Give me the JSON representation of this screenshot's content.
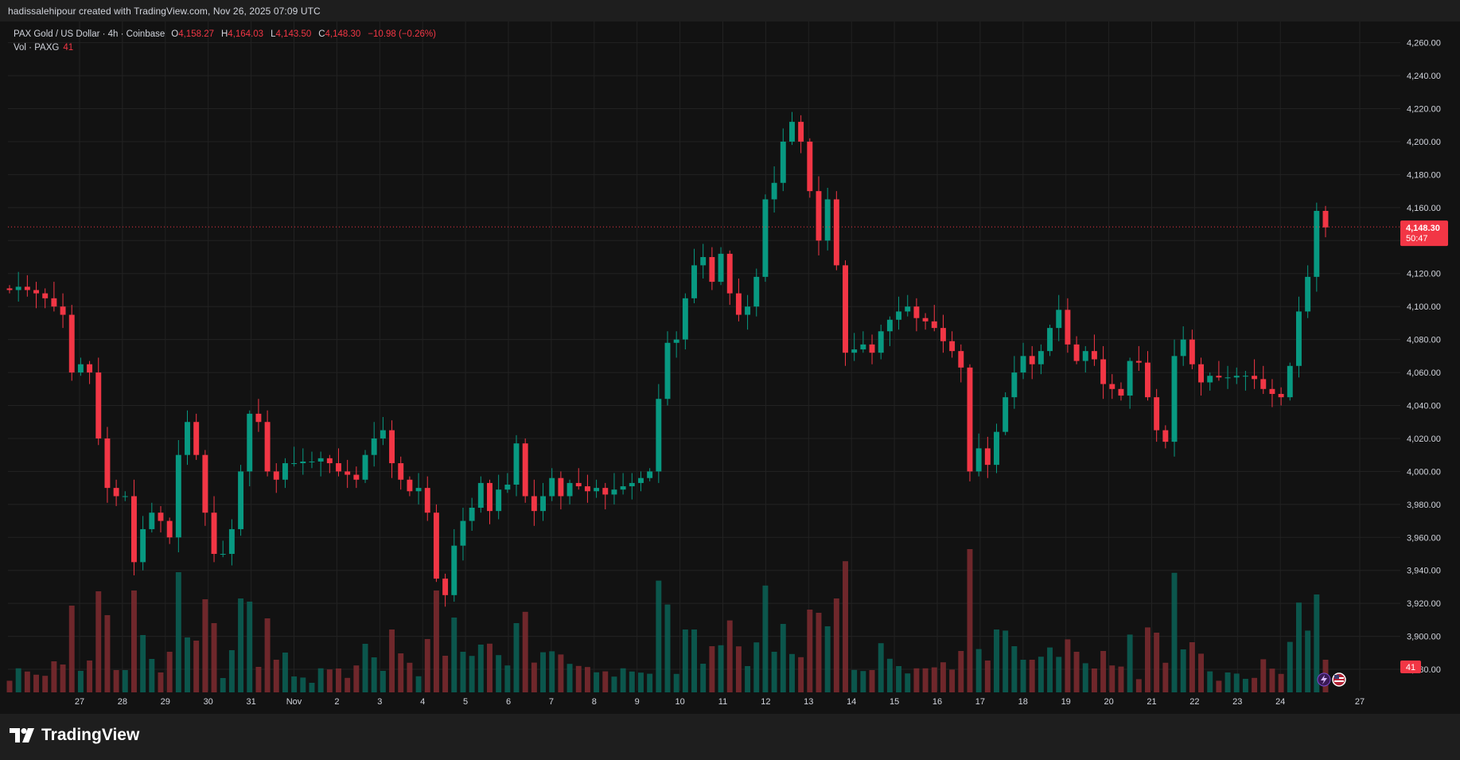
{
  "header": {
    "attribution": "hadissalehipour created with TradingView.com, Nov 26, 2025 07:09 UTC"
  },
  "legend": {
    "symbol": "PAX Gold / US Dollar · 4h · Coinbase",
    "open_label": "O",
    "open": "4,158.27",
    "high_label": "H",
    "high": "4,164.03",
    "low_label": "L",
    "low": "4,143.50",
    "close_label": "C",
    "close": "4,148.30",
    "change": "−10.98 (−0.26%)",
    "vol_label": "Vol · PAXG",
    "vol_value": "41"
  },
  "price_tag": {
    "price": "4,148.30",
    "countdown": "50:47"
  },
  "volume_tag": "41",
  "brand": {
    "name": "TradingView"
  },
  "colors": {
    "up": "#089981",
    "down": "#f23645",
    "up_vol": "#0b5e53",
    "down_vol": "#7a2a2f",
    "background": "#121212",
    "grid": "#222222",
    "text": "#d1d4dc"
  },
  "icons": [
    "lightning-icon",
    "us-flag-icon",
    "tradingview-logo-icon"
  ],
  "chart_data": {
    "type": "candlestick",
    "symbol": "PAX Gold / US Dollar",
    "interval": "4h",
    "exchange": "Coinbase",
    "y_axis": {
      "ticks": [
        "3,880.00",
        "3,900.00",
        "3,920.00",
        "3,940.00",
        "3,960.00",
        "3,980.00",
        "4,000.00",
        "4,020.00",
        "4,040.00",
        "4,060.00",
        "4,080.00",
        "4,100.00",
        "4,120.00",
        "4,140.00",
        "4,160.00",
        "4,180.00",
        "4,200.00",
        "4,220.00",
        "4,240.00",
        "4,260.00"
      ],
      "range": [
        3867,
        4269
      ]
    },
    "x_axis": {
      "ticks": [
        "27",
        "28",
        "29",
        "30",
        "31",
        "Nov",
        "2",
        "3",
        "4",
        "5",
        "6",
        "7",
        "8",
        "9",
        "10",
        "11",
        "12",
        "13",
        "14",
        "15",
        "16",
        "17",
        "18",
        "19",
        "20",
        "21",
        "22",
        "23",
        "24",
        "27"
      ]
    },
    "last_price": 4148.3,
    "close_series": [
      4110,
      4112,
      4110,
      4108,
      4105,
      4100,
      4095,
      4060,
      4065,
      4060,
      4020,
      3990,
      3985,
      3985,
      3945,
      3965,
      3975,
      3970,
      3960,
      4010,
      4030,
      4010,
      3975,
      3950,
      3950,
      3965,
      4000,
      4035,
      4030,
      4000,
      3995,
      4005,
      4005,
      4006,
      4006,
      4008,
      4005,
      4000,
      3998,
      3995,
      4010,
      4020,
      4025,
      4005,
      3995,
      3988,
      3990,
      3975,
      3935,
      3925,
      3955,
      3970,
      3978,
      3993,
      3976,
      3989,
      3992,
      4017,
      3985,
      3976,
      3985,
      3996,
      3985,
      3993,
      3991,
      3988,
      3990,
      3986,
      3989,
      3991,
      3993,
      3996,
      4000,
      4044,
      4078,
      4080,
      4105,
      4125,
      4130,
      4115,
      4132,
      4108,
      4095,
      4100,
      4118,
      4165,
      4175,
      4200,
      4212,
      4200,
      4170,
      4140,
      4165,
      4125,
      4072,
      4074,
      4077,
      4072,
      4085,
      4092,
      4097,
      4100,
      4093,
      4091,
      4087,
      4079,
      4073,
      4063,
      4000,
      4014,
      4004,
      4024,
      4045,
      4060,
      4070,
      4065,
      4073,
      4087,
      4098,
      4077,
      4067,
      4073,
      4068,
      4053,
      4050,
      4046,
      4067,
      4066,
      4045,
      4025,
      4018,
      4070,
      4080,
      4065,
      4054,
      4058,
      4057,
      4057,
      4058,
      4058,
      4056,
      4050,
      4047,
      4045,
      4064,
      4097,
      4118,
      4158,
      4148
    ],
    "series_note": "approximate 4h closes read from chart"
  }
}
